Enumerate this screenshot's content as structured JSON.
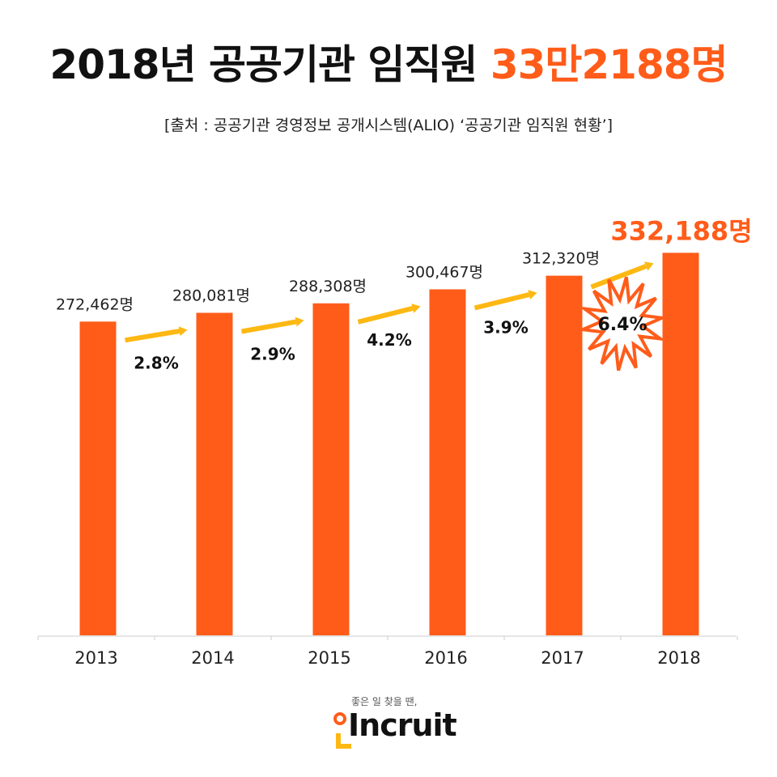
{
  "header": {
    "title_prefix": "2018년 공공기관 임직원 ",
    "title_highlight": "33만2188명",
    "source": "[출처 : 공공기관 경영정보 공개시스템(ALIO) ‘공공기관 임직원 현황’]"
  },
  "chart_data": {
    "type": "bar",
    "categories": [
      "2013",
      "2014",
      "2015",
      "2016",
      "2017",
      "2018"
    ],
    "values": [
      272462,
      280081,
      288308,
      300467,
      312320,
      332188
    ],
    "data_labels": [
      "272,462명",
      "280,081명",
      "288,308명",
      "300,467명",
      "312,320명",
      "332,188명"
    ],
    "growth_labels": [
      "2.8%",
      "2.9%",
      "4.2%",
      "3.9%",
      "6.4%"
    ],
    "ylim": [
      0,
      350000
    ],
    "grid": false,
    "legend": "none",
    "colors": {
      "bar": "#FF5C1A",
      "arrow": "#FDB813",
      "highlight_label": "#FF5C1A",
      "burst_stroke": "#FF5C1A"
    }
  },
  "footer": {
    "tagline": "좋은 일 찾을 땐,",
    "brand": "Incruit"
  }
}
